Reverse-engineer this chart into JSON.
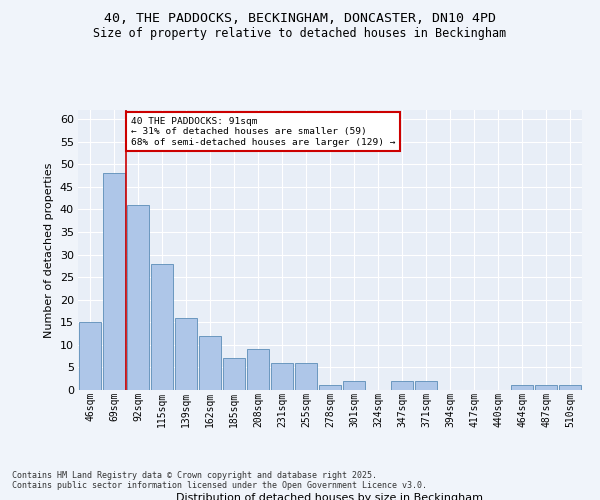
{
  "title_line1": "40, THE PADDOCKS, BECKINGHAM, DONCASTER, DN10 4PD",
  "title_line2": "Size of property relative to detached houses in Beckingham",
  "xlabel": "Distribution of detached houses by size in Beckingham",
  "ylabel": "Number of detached properties",
  "bar_labels": [
    "46sqm",
    "69sqm",
    "92sqm",
    "115sqm",
    "139sqm",
    "162sqm",
    "185sqm",
    "208sqm",
    "231sqm",
    "255sqm",
    "278sqm",
    "301sqm",
    "324sqm",
    "347sqm",
    "371sqm",
    "394sqm",
    "417sqm",
    "440sqm",
    "464sqm",
    "487sqm",
    "510sqm"
  ],
  "bar_values": [
    15,
    48,
    41,
    28,
    16,
    12,
    7,
    9,
    6,
    6,
    1,
    2,
    0,
    2,
    2,
    0,
    0,
    0,
    1,
    1,
    1
  ],
  "bar_color": "#aec6e8",
  "bar_edge_color": "#5b8db8",
  "bg_color": "#e8eef7",
  "grid_color": "#ffffff",
  "fig_bg_color": "#f0f4fa",
  "ylim": [
    0,
    62
  ],
  "yticks": [
    0,
    5,
    10,
    15,
    20,
    25,
    30,
    35,
    40,
    45,
    50,
    55,
    60
  ],
  "property_label": "40 THE PADDOCKS: 91sqm",
  "annotation_line2": "← 31% of detached houses are smaller (59)",
  "annotation_line3": "68% of semi-detached houses are larger (129) →",
  "vline_color": "#cc0000",
  "annotation_box_color": "#cc0000",
  "footer_line1": "Contains HM Land Registry data © Crown copyright and database right 2025.",
  "footer_line2": "Contains public sector information licensed under the Open Government Licence v3.0."
}
